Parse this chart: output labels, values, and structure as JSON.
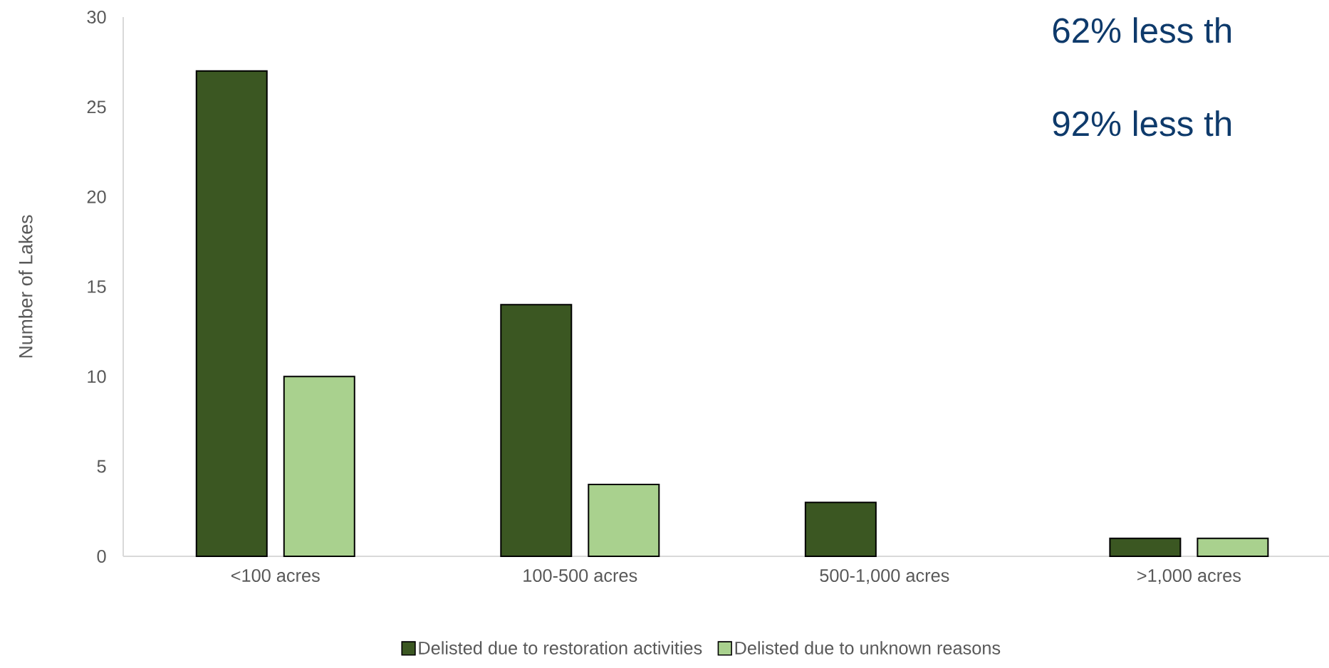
{
  "chart_data": {
    "type": "bar",
    "ylabel": "Number of Lakes",
    "categories": [
      "<100 acres",
      "100-500 acres",
      "500-1,000 acres",
      ">1,000 acres"
    ],
    "series": [
      {
        "name": "Delisted due to restoration activities",
        "color": "#3b5722",
        "values": [
          27,
          14,
          3,
          1
        ]
      },
      {
        "name": "Delisted due to unknown reasons",
        "color": "#a9d18e",
        "values": [
          10,
          4,
          null,
          1
        ]
      }
    ],
    "ylim": [
      0,
      30
    ],
    "yticks": [
      0,
      5,
      10,
      15,
      20,
      25,
      30
    ],
    "legend": "bottom",
    "annotations": [
      "62% less th",
      "92% less th"
    ]
  }
}
